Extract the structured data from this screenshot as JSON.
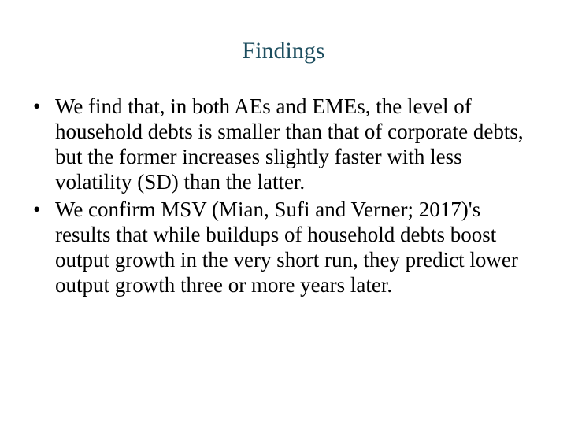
{
  "slide": {
    "title": "Findings",
    "title_color": "#1d4e5f",
    "title_fontsize": 30,
    "body_color": "#000000",
    "body_fontsize": 27,
    "background_color": "#ffffff",
    "bullets": [
      "We find that, in both AEs and EMEs, the level of household debts is smaller than that of corporate debts, but the former increases slightly faster with less volatility (SD) than the latter.",
      "We confirm MSV (Mian, Sufi and Verner; 2017)'s results that while buildups of household debts boost output growth in the very short run, they predict lower output growth three or more years later."
    ]
  }
}
